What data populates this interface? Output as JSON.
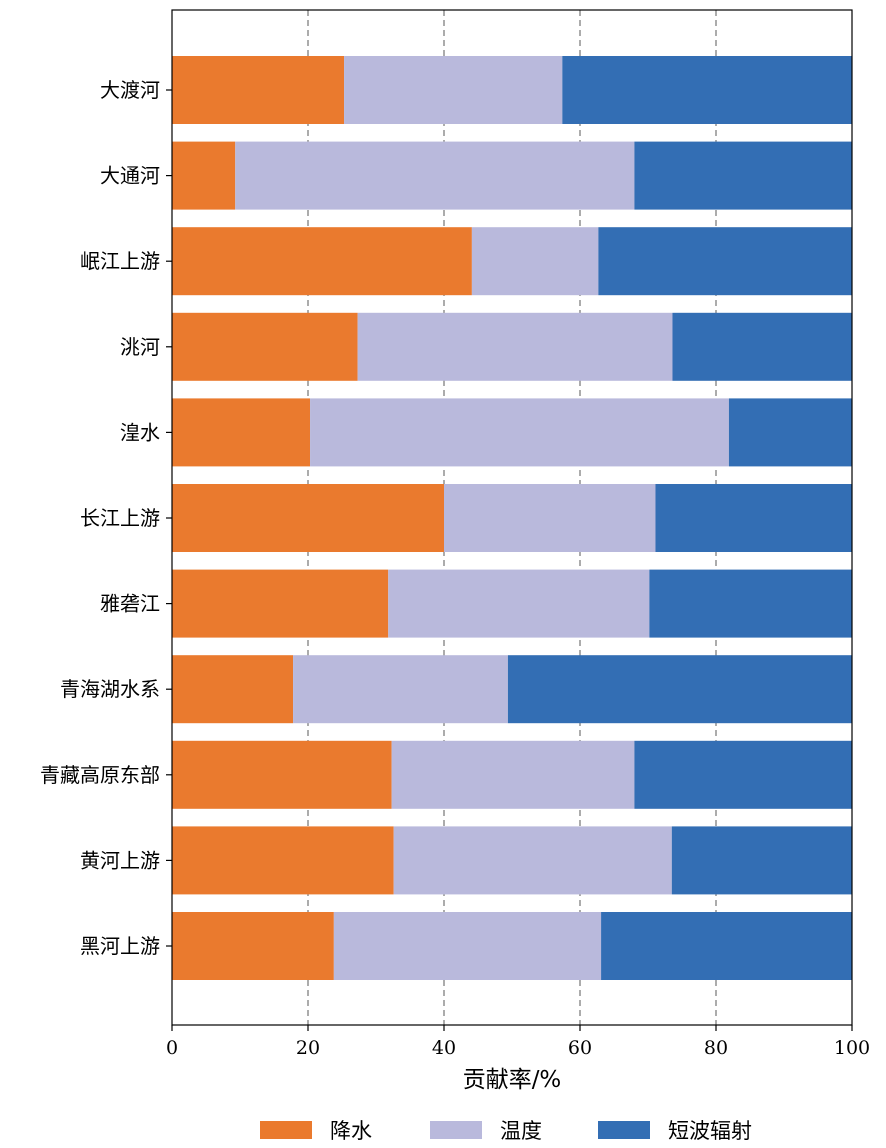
{
  "chart_data": {
    "type": "bar",
    "orientation": "horizontal",
    "stacked": true,
    "categories": [
      "大渡河",
      "大通河",
      "岷江上游",
      "洮河",
      "湟水",
      "长江上游",
      "雅砻江",
      "青海湖水系",
      "青藏高原东部",
      "黄河上游",
      "黑河上游"
    ],
    "series": [
      {
        "name": "降水",
        "color": "#ea7a2e",
        "values": [
          25.3,
          9.3,
          44.1,
          27.3,
          20.3,
          40.0,
          31.8,
          17.8,
          32.3,
          32.6,
          23.8
        ]
      },
      {
        "name": "温度",
        "color": "#b9b9dc",
        "values": [
          32.1,
          58.7,
          18.6,
          46.3,
          61.6,
          31.1,
          38.4,
          31.6,
          35.7,
          40.9,
          39.3
        ]
      },
      {
        "name": "短波辐射",
        "color": "#336eb4",
        "values": [
          42.6,
          32.0,
          37.3,
          26.4,
          18.1,
          28.9,
          29.8,
          50.6,
          32.0,
          26.5,
          36.9
        ]
      }
    ],
    "xlabel": "贡献率/%",
    "xlim": [
      0,
      100
    ],
    "xticks": [
      0,
      20,
      40,
      60,
      80,
      100
    ],
    "grid": "vertical dashed at 20, 40, 60, 80",
    "legend": "bottom"
  }
}
